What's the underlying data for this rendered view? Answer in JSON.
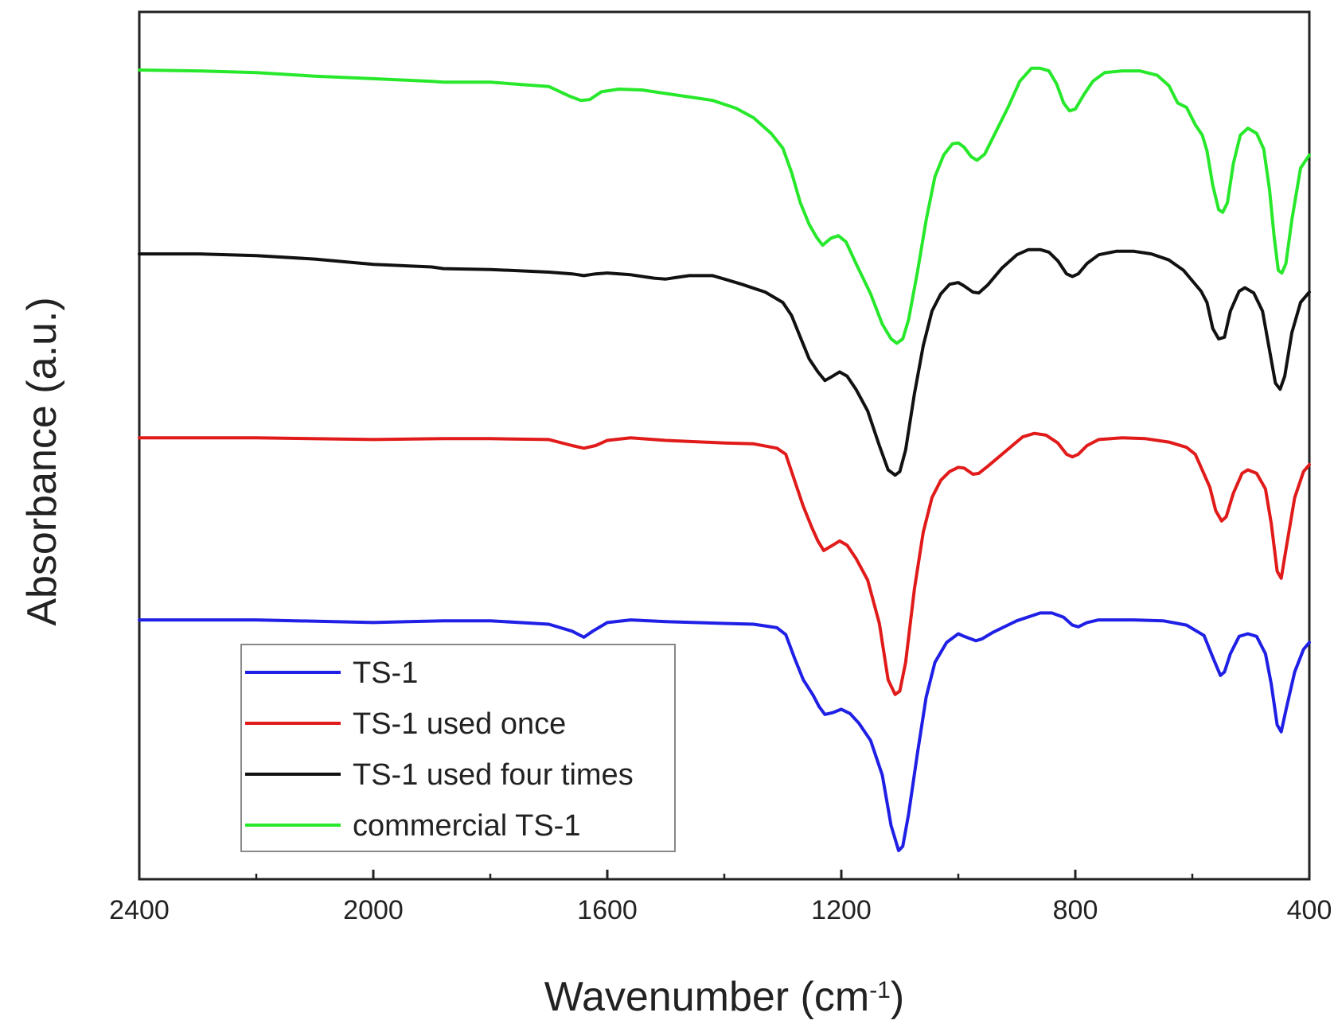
{
  "chart_data": {
    "type": "line",
    "title": "",
    "xlabel": "Wavenumber (cm",
    "xlabel_sup": "-1",
    "xlabel_close": ")",
    "ylabel": "Absorbance (a.u.)",
    "xlim": [
      2400,
      400
    ],
    "x_reversed": true,
    "ylim": [
      0,
      100
    ],
    "grid": false,
    "legend_position": "bottom-left",
    "x_ticks": [
      2400,
      2000,
      1600,
      1200,
      800,
      400
    ],
    "x_minor_ticks": [
      2200,
      1800,
      1400,
      1000,
      600
    ],
    "series": [
      {
        "name": "TS-1",
        "color": "#1f1fe6",
        "points": [
          [
            2400,
            29.9
          ],
          [
            2200,
            29.9
          ],
          [
            2000,
            29.6
          ],
          [
            1880,
            29.8
          ],
          [
            1800,
            29.8
          ],
          [
            1700,
            29.4
          ],
          [
            1660,
            28.6
          ],
          [
            1640,
            27.9
          ],
          [
            1625,
            28.6
          ],
          [
            1600,
            29.6
          ],
          [
            1560,
            29.9
          ],
          [
            1500,
            29.7
          ],
          [
            1400,
            29.5
          ],
          [
            1350,
            29.4
          ],
          [
            1310,
            29.0
          ],
          [
            1295,
            28.2
          ],
          [
            1280,
            25.5
          ],
          [
            1265,
            23.0
          ],
          [
            1248,
            21.2
          ],
          [
            1238,
            19.9
          ],
          [
            1228,
            19.0
          ],
          [
            1215,
            19.2
          ],
          [
            1200,
            19.6
          ],
          [
            1185,
            19.1
          ],
          [
            1170,
            18.0
          ],
          [
            1150,
            16.0
          ],
          [
            1130,
            12.0
          ],
          [
            1115,
            6.2
          ],
          [
            1102,
            3.3
          ],
          [
            1095,
            3.8
          ],
          [
            1085,
            7.5
          ],
          [
            1070,
            14.5
          ],
          [
            1055,
            21.0
          ],
          [
            1040,
            25.0
          ],
          [
            1020,
            27.3
          ],
          [
            1000,
            28.3
          ],
          [
            990,
            28.0
          ],
          [
            970,
            27.5
          ],
          [
            960,
            27.7
          ],
          [
            940,
            28.5
          ],
          [
            900,
            29.8
          ],
          [
            860,
            30.7
          ],
          [
            840,
            30.7
          ],
          [
            820,
            30.2
          ],
          [
            805,
            29.3
          ],
          [
            795,
            29.1
          ],
          [
            780,
            29.6
          ],
          [
            760,
            29.9
          ],
          [
            700,
            29.9
          ],
          [
            650,
            29.8
          ],
          [
            610,
            29.3
          ],
          [
            580,
            28.1
          ],
          [
            565,
            25.6
          ],
          [
            552,
            23.5
          ],
          [
            545,
            23.9
          ],
          [
            535,
            26.0
          ],
          [
            520,
            28.0
          ],
          [
            505,
            28.3
          ],
          [
            490,
            28.0
          ],
          [
            475,
            26.0
          ],
          [
            465,
            22.5
          ],
          [
            455,
            17.8
          ],
          [
            448,
            17.0
          ],
          [
            440,
            19.5
          ],
          [
            425,
            23.9
          ],
          [
            410,
            26.5
          ],
          [
            400,
            27.3
          ]
        ]
      },
      {
        "name": "TS-1 used once",
        "color": "#e11a1a",
        "points": [
          [
            2400,
            50.9
          ],
          [
            2200,
            50.9
          ],
          [
            2000,
            50.7
          ],
          [
            1880,
            50.8
          ],
          [
            1800,
            50.8
          ],
          [
            1700,
            50.7
          ],
          [
            1660,
            50.0
          ],
          [
            1640,
            49.7
          ],
          [
            1620,
            50.0
          ],
          [
            1600,
            50.6
          ],
          [
            1560,
            50.9
          ],
          [
            1500,
            50.6
          ],
          [
            1400,
            50.3
          ],
          [
            1350,
            50.2
          ],
          [
            1310,
            49.7
          ],
          [
            1295,
            49.0
          ],
          [
            1280,
            46.0
          ],
          [
            1265,
            43.0
          ],
          [
            1250,
            40.5
          ],
          [
            1240,
            39.0
          ],
          [
            1230,
            37.9
          ],
          [
            1215,
            38.5
          ],
          [
            1203,
            39.0
          ],
          [
            1190,
            38.5
          ],
          [
            1175,
            37.0
          ],
          [
            1155,
            34.5
          ],
          [
            1135,
            29.5
          ],
          [
            1120,
            23.0
          ],
          [
            1108,
            21.3
          ],
          [
            1100,
            21.7
          ],
          [
            1090,
            25.0
          ],
          [
            1075,
            33.5
          ],
          [
            1060,
            40.0
          ],
          [
            1045,
            44.0
          ],
          [
            1030,
            46.0
          ],
          [
            1015,
            47.0
          ],
          [
            1000,
            47.5
          ],
          [
            990,
            47.4
          ],
          [
            975,
            46.7
          ],
          [
            965,
            46.8
          ],
          [
            950,
            47.6
          ],
          [
            920,
            49.3
          ],
          [
            890,
            51.0
          ],
          [
            870,
            51.4
          ],
          [
            850,
            51.2
          ],
          [
            830,
            50.3
          ],
          [
            815,
            49.0
          ],
          [
            805,
            48.7
          ],
          [
            795,
            49.0
          ],
          [
            780,
            50.0
          ],
          [
            760,
            50.7
          ],
          [
            720,
            50.9
          ],
          [
            680,
            50.8
          ],
          [
            640,
            50.4
          ],
          [
            610,
            49.8
          ],
          [
            595,
            49.0
          ],
          [
            585,
            47.5
          ],
          [
            570,
            45.2
          ],
          [
            560,
            42.5
          ],
          [
            550,
            41.3
          ],
          [
            542,
            41.8
          ],
          [
            530,
            44.5
          ],
          [
            515,
            46.8
          ],
          [
            505,
            47.2
          ],
          [
            490,
            46.8
          ],
          [
            475,
            45.0
          ],
          [
            465,
            41.0
          ],
          [
            455,
            35.5
          ],
          [
            448,
            34.7
          ],
          [
            440,
            38.0
          ],
          [
            425,
            44.0
          ],
          [
            410,
            47.0
          ],
          [
            400,
            47.8
          ]
        ]
      },
      {
        "name": "TS-1 used four times",
        "color": "#111111",
        "points": [
          [
            2400,
            72.1
          ],
          [
            2300,
            72.1
          ],
          [
            2200,
            71.9
          ],
          [
            2100,
            71.5
          ],
          [
            2000,
            70.9
          ],
          [
            1900,
            70.6
          ],
          [
            1880,
            70.4
          ],
          [
            1800,
            70.3
          ],
          [
            1700,
            70.0
          ],
          [
            1660,
            69.8
          ],
          [
            1640,
            69.6
          ],
          [
            1620,
            69.8
          ],
          [
            1600,
            69.9
          ],
          [
            1560,
            69.7
          ],
          [
            1520,
            69.3
          ],
          [
            1500,
            69.2
          ],
          [
            1480,
            69.4
          ],
          [
            1460,
            69.6
          ],
          [
            1420,
            69.6
          ],
          [
            1400,
            69.2
          ],
          [
            1370,
            68.6
          ],
          [
            1330,
            67.7
          ],
          [
            1300,
            66.5
          ],
          [
            1285,
            65.0
          ],
          [
            1270,
            62.5
          ],
          [
            1255,
            60.0
          ],
          [
            1240,
            58.5
          ],
          [
            1228,
            57.5
          ],
          [
            1215,
            58.0
          ],
          [
            1203,
            58.5
          ],
          [
            1190,
            58.0
          ],
          [
            1175,
            56.5
          ],
          [
            1155,
            54.0
          ],
          [
            1135,
            50.0
          ],
          [
            1120,
            47.2
          ],
          [
            1108,
            46.6
          ],
          [
            1100,
            47.0
          ],
          [
            1090,
            49.5
          ],
          [
            1075,
            56.0
          ],
          [
            1060,
            61.5
          ],
          [
            1045,
            65.5
          ],
          [
            1030,
            67.5
          ],
          [
            1015,
            68.6
          ],
          [
            1000,
            68.8
          ],
          [
            990,
            68.4
          ],
          [
            975,
            67.7
          ],
          [
            965,
            67.6
          ],
          [
            950,
            68.5
          ],
          [
            925,
            70.5
          ],
          [
            900,
            72.0
          ],
          [
            880,
            72.6
          ],
          [
            860,
            72.6
          ],
          [
            845,
            72.3
          ],
          [
            830,
            71.3
          ],
          [
            815,
            69.8
          ],
          [
            805,
            69.5
          ],
          [
            795,
            69.8
          ],
          [
            780,
            71.0
          ],
          [
            760,
            72.0
          ],
          [
            730,
            72.4
          ],
          [
            700,
            72.4
          ],
          [
            670,
            72.1
          ],
          [
            640,
            71.4
          ],
          [
            615,
            70.2
          ],
          [
            600,
            69.0
          ],
          [
            585,
            67.8
          ],
          [
            575,
            66.5
          ],
          [
            565,
            63.5
          ],
          [
            555,
            62.3
          ],
          [
            545,
            62.5
          ],
          [
            535,
            65.5
          ],
          [
            520,
            67.8
          ],
          [
            510,
            68.2
          ],
          [
            495,
            67.6
          ],
          [
            480,
            65.5
          ],
          [
            468,
            61.0
          ],
          [
            458,
            57.2
          ],
          [
            450,
            56.5
          ],
          [
            442,
            58.0
          ],
          [
            430,
            63.0
          ],
          [
            415,
            66.5
          ],
          [
            400,
            67.7
          ]
        ]
      },
      {
        "name": "commercial TS-1",
        "color": "#27e82b",
        "points": [
          [
            2400,
            93.3
          ],
          [
            2300,
            93.2
          ],
          [
            2200,
            93.0
          ],
          [
            2100,
            92.6
          ],
          [
            2000,
            92.3
          ],
          [
            1900,
            92.0
          ],
          [
            1880,
            91.9
          ],
          [
            1800,
            91.9
          ],
          [
            1700,
            91.4
          ],
          [
            1665,
            90.3
          ],
          [
            1645,
            89.8
          ],
          [
            1630,
            89.9
          ],
          [
            1610,
            90.8
          ],
          [
            1580,
            91.1
          ],
          [
            1540,
            91.0
          ],
          [
            1500,
            90.6
          ],
          [
            1450,
            90.1
          ],
          [
            1420,
            89.8
          ],
          [
            1380,
            88.9
          ],
          [
            1350,
            87.8
          ],
          [
            1320,
            86.0
          ],
          [
            1300,
            84.3
          ],
          [
            1285,
            81.5
          ],
          [
            1270,
            78.0
          ],
          [
            1255,
            75.5
          ],
          [
            1242,
            74.0
          ],
          [
            1232,
            73.1
          ],
          [
            1218,
            73.9
          ],
          [
            1205,
            74.2
          ],
          [
            1192,
            73.5
          ],
          [
            1175,
            71.0
          ],
          [
            1150,
            67.5
          ],
          [
            1130,
            64.0
          ],
          [
            1115,
            62.3
          ],
          [
            1105,
            61.8
          ],
          [
            1095,
            62.3
          ],
          [
            1085,
            64.5
          ],
          [
            1070,
            70.0
          ],
          [
            1055,
            76.0
          ],
          [
            1040,
            81.0
          ],
          [
            1025,
            83.5
          ],
          [
            1010,
            84.8
          ],
          [
            1000,
            84.9
          ],
          [
            990,
            84.4
          ],
          [
            978,
            83.3
          ],
          [
            968,
            82.9
          ],
          [
            955,
            83.6
          ],
          [
            935,
            86.3
          ],
          [
            915,
            89.0
          ],
          [
            895,
            92.0
          ],
          [
            875,
            93.5
          ],
          [
            860,
            93.5
          ],
          [
            845,
            93.2
          ],
          [
            832,
            91.7
          ],
          [
            820,
            89.5
          ],
          [
            810,
            88.6
          ],
          [
            800,
            88.8
          ],
          [
            785,
            90.5
          ],
          [
            770,
            92.0
          ],
          [
            750,
            93.0
          ],
          [
            720,
            93.2
          ],
          [
            690,
            93.2
          ],
          [
            660,
            92.7
          ],
          [
            640,
            91.5
          ],
          [
            625,
            89.5
          ],
          [
            610,
            89.0
          ],
          [
            595,
            87.0
          ],
          [
            583,
            85.8
          ],
          [
            575,
            84.0
          ],
          [
            565,
            80.0
          ],
          [
            555,
            77.2
          ],
          [
            548,
            76.9
          ],
          [
            540,
            78.0
          ],
          [
            530,
            82.5
          ],
          [
            518,
            85.8
          ],
          [
            505,
            86.6
          ],
          [
            490,
            86.0
          ],
          [
            478,
            84.2
          ],
          [
            468,
            79.5
          ],
          [
            460,
            74.0
          ],
          [
            453,
            70.2
          ],
          [
            447,
            69.9
          ],
          [
            440,
            71.0
          ],
          [
            430,
            76.0
          ],
          [
            415,
            82.0
          ],
          [
            400,
            83.5
          ]
        ]
      }
    ]
  }
}
